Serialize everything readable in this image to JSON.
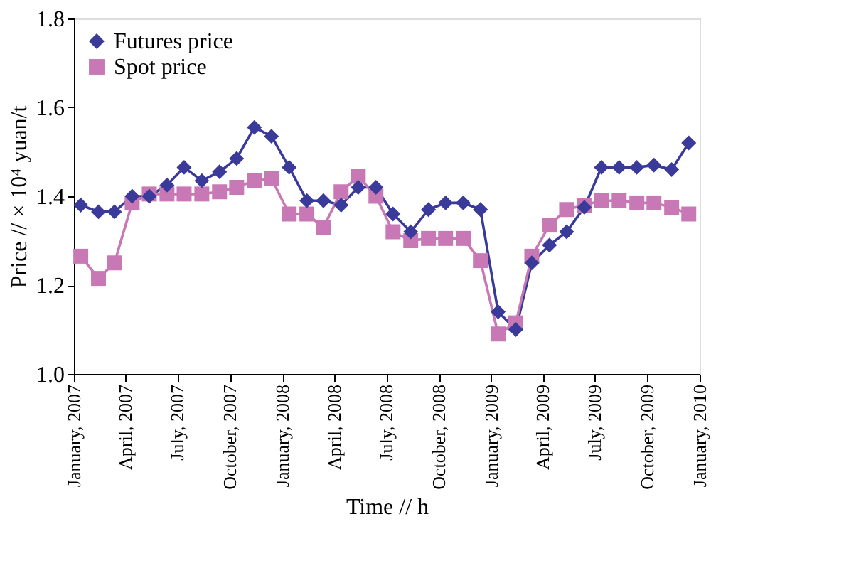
{
  "chart_data": {
    "type": "line",
    "xlabel": "Time // h",
    "ylabel": "Price // × 10⁴ yuan/t",
    "x": [
      "2007-01-13",
      "2007-02-13",
      "2007-03-13",
      "2007-04-13",
      "2007-05-13",
      "2007-06-13",
      "2007-07-13",
      "2007-08-13",
      "2007-09-13",
      "2007-10-13",
      "2007-11-13",
      "2007-12-13",
      "2008-01-13",
      "2008-02-13",
      "2008-03-13",
      "2008-04-13",
      "2008-05-13",
      "2008-06-13",
      "2008-07-13",
      "2008-08-13",
      "2008-09-13",
      "2008-10-13",
      "2008-11-13",
      "2008-12-13",
      "2009-01-13",
      "2009-02-13",
      "2009-03-13",
      "2009-04-13",
      "2009-05-13",
      "2009-06-13",
      "2009-07-13",
      "2009-08-13",
      "2009-09-13",
      "2009-10-13",
      "2009-11-13",
      "2009-12-13"
    ],
    "series": [
      {
        "name": "Futures price",
        "color": "#3a3a9a",
        "marker": "diamond",
        "values": [
          1.38,
          1.365,
          1.365,
          1.4,
          1.4,
          1.425,
          1.465,
          1.435,
          1.455,
          1.485,
          1.555,
          1.535,
          1.465,
          1.39,
          1.39,
          1.38,
          1.42,
          1.42,
          1.36,
          1.32,
          1.37,
          1.385,
          1.385,
          1.37,
          1.14,
          1.1,
          1.25,
          1.29,
          1.32,
          1.375,
          1.465,
          1.465,
          1.465,
          1.47,
          1.46,
          1.52
        ]
      },
      {
        "name": "Spot price",
        "color": "#c878b4",
        "marker": "square",
        "values": [
          1.265,
          1.215,
          1.25,
          1.385,
          1.405,
          1.405,
          1.405,
          1.405,
          1.41,
          1.42,
          1.435,
          1.44,
          1.36,
          1.36,
          1.33,
          1.41,
          1.445,
          1.4,
          1.32,
          1.3,
          1.305,
          1.305,
          1.305,
          1.255,
          1.09,
          1.115,
          1.265,
          1.335,
          1.37,
          1.38,
          1.39,
          1.39,
          1.385,
          1.385,
          1.375,
          1.36
        ]
      }
    ],
    "xlim": [
      "2007-01-01",
      "2010-01-01"
    ],
    "xticks": [
      {
        "value": "2007-01-01",
        "label": "January, 2007"
      },
      {
        "value": "2007-04-01",
        "label": "April, 2007"
      },
      {
        "value": "2007-07-01",
        "label": "July, 2007"
      },
      {
        "value": "2007-10-01",
        "label": "October, 2007"
      },
      {
        "value": "2008-01-01",
        "label": "January, 2008"
      },
      {
        "value": "2008-04-01",
        "label": "April, 2008"
      },
      {
        "value": "2008-07-01",
        "label": "July, 2008"
      },
      {
        "value": "2008-10-01",
        "label": "October, 2008"
      },
      {
        "value": "2009-01-01",
        "label": "January, 2009"
      },
      {
        "value": "2009-04-01",
        "label": "April, 2009"
      },
      {
        "value": "2009-07-01",
        "label": "July, 2009"
      },
      {
        "value": "2009-10-01",
        "label": "October, 2009"
      },
      {
        "value": "2010-01-01",
        "label": "January, 2010"
      }
    ],
    "ylim": [
      1.0,
      1.8
    ],
    "yticks": [
      {
        "value": 1.0,
        "label": "1.0"
      },
      1.2,
      1.4,
      1.6,
      1.8
    ],
    "grid": false,
    "legend": "top left",
    "line_style": "solid"
  }
}
